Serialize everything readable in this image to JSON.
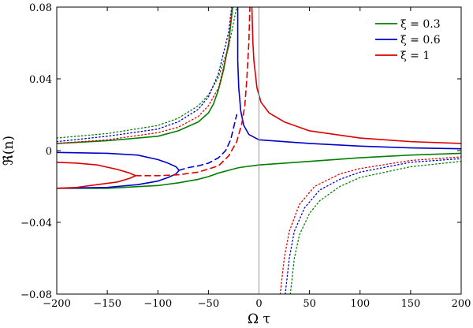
{
  "chart_data": {
    "type": "line",
    "title": "",
    "xlabel": "Ω τ",
    "ylabel": "ℜ(n)",
    "xlim": [
      -200,
      200
    ],
    "ylim": [
      -0.08,
      0.08
    ],
    "xticks": [
      -200,
      -150,
      -100,
      -50,
      0,
      50,
      100,
      150,
      200
    ],
    "yticks": [
      -0.08,
      -0.04,
      0,
      0.04,
      0.08
    ],
    "xtick_labels": [
      "−200",
      "−150",
      "−100",
      "−50",
      "0",
      "50",
      "100",
      "150",
      "200"
    ],
    "ytick_labels": [
      "−0.08",
      "−0.04",
      "0",
      "0.04",
      "0.08"
    ],
    "grid": false,
    "vertical_reference_line_x": 0,
    "legend_position": "top-right",
    "series": [
      {
        "name": "ξ = 0.3",
        "color": "#008000",
        "solid_upper": [
          [
            -200,
            0.004
          ],
          [
            -150,
            0.0055
          ],
          [
            -100,
            0.008
          ],
          [
            -80,
            0.011
          ],
          [
            -60,
            0.016
          ],
          [
            -50,
            0.021
          ],
          [
            -45,
            0.026
          ],
          [
            -40,
            0.034
          ],
          [
            -35,
            0.045
          ],
          [
            -30,
            0.06
          ],
          [
            -26,
            0.08
          ]
        ],
        "solid_lower": [
          [
            -200,
            -0.021
          ],
          [
            -150,
            -0.021
          ],
          [
            -100,
            -0.0195
          ],
          [
            -80,
            -0.018
          ],
          [
            -60,
            -0.016
          ],
          [
            -50,
            -0.0145
          ],
          [
            -40,
            -0.0125
          ],
          [
            -30,
            -0.011
          ],
          [
            -20,
            -0.0095
          ],
          [
            0,
            -0.008
          ],
          [
            50,
            -0.006
          ],
          [
            100,
            -0.004
          ],
          [
            150,
            -0.0025
          ],
          [
            200,
            -0.0015
          ]
        ],
        "dotted_upper": [
          [
            -200,
            0.007
          ],
          [
            -150,
            0.0095
          ],
          [
            -100,
            0.014
          ],
          [
            -80,
            0.018
          ],
          [
            -60,
            0.025
          ],
          [
            -50,
            0.031
          ],
          [
            -40,
            0.041
          ],
          [
            -30,
            0.058
          ],
          [
            -22,
            0.08
          ]
        ],
        "dotted_lower": [
          [
            31,
            -0.08
          ],
          [
            35,
            -0.06
          ],
          [
            40,
            -0.047
          ],
          [
            50,
            -0.035
          ],
          [
            60,
            -0.028
          ],
          [
            80,
            -0.02
          ],
          [
            100,
            -0.015
          ],
          [
            150,
            -0.009
          ],
          [
            200,
            -0.006
          ]
        ]
      },
      {
        "name": "ξ = 0.6",
        "color": "#0000cc",
        "solid_left": [
          [
            -200,
            -0.021
          ],
          [
            -150,
            -0.0205
          ],
          [
            -120,
            -0.019
          ],
          [
            -100,
            -0.017
          ],
          [
            -90,
            -0.015
          ],
          [
            -82,
            -0.013
          ],
          [
            -79,
            -0.011
          ],
          [
            -82,
            -0.009
          ],
          [
            -90,
            -0.007
          ],
          [
            -100,
            -0.005
          ],
          [
            -120,
            -0.0025
          ],
          [
            -150,
            -0.0015
          ],
          [
            -200,
            -0.001
          ]
        ],
        "dashed": [
          [
            -79,
            -0.011
          ],
          [
            -70,
            -0.0095
          ],
          [
            -60,
            -0.0085
          ],
          [
            -50,
            -0.007
          ],
          [
            -40,
            -0.004
          ],
          [
            -33,
            0
          ],
          [
            -28,
            0.006
          ],
          [
            -25,
            0.013
          ],
          [
            -22,
            0.02
          ]
        ],
        "solid_right": [
          [
            -21,
            0.08
          ],
          [
            -21,
            0.05
          ],
          [
            -20,
            0.035
          ],
          [
            -18,
            0.022
          ],
          [
            -15,
            0.014
          ],
          [
            -10,
            0.009
          ],
          [
            0,
            0.006
          ],
          [
            50,
            0.004
          ],
          [
            100,
            0.0025
          ],
          [
            150,
            0.0015
          ],
          [
            200,
            0.001
          ]
        ],
        "dotted_upper": [
          [
            -200,
            0.005
          ],
          [
            -150,
            0.008
          ],
          [
            -100,
            0.012
          ],
          [
            -80,
            0.016
          ],
          [
            -60,
            0.023
          ],
          [
            -50,
            0.03
          ],
          [
            -40,
            0.043
          ],
          [
            -30,
            0.066
          ],
          [
            -27,
            0.08
          ]
        ],
        "dotted_lower": [
          [
            26,
            -0.08
          ],
          [
            30,
            -0.06
          ],
          [
            35,
            -0.045
          ],
          [
            45,
            -0.032
          ],
          [
            60,
            -0.022
          ],
          [
            80,
            -0.016
          ],
          [
            100,
            -0.012
          ],
          [
            150,
            -0.0065
          ],
          [
            200,
            -0.0045
          ]
        ]
      },
      {
        "name": "ξ = 1",
        "color": "#dd0000",
        "solid_left": [
          [
            -200,
            -0.0065
          ],
          [
            -180,
            -0.007
          ],
          [
            -160,
            -0.008
          ],
          [
            -140,
            -0.0105
          ],
          [
            -128,
            -0.0125
          ],
          [
            -122,
            -0.014
          ],
          [
            -128,
            -0.0155
          ],
          [
            -140,
            -0.0175
          ],
          [
            -160,
            -0.019
          ],
          [
            -180,
            -0.0205
          ],
          [
            -200,
            -0.021
          ]
        ],
        "dashed": [
          [
            -122,
            -0.014
          ],
          [
            -100,
            -0.014
          ],
          [
            -80,
            -0.0135
          ],
          [
            -60,
            -0.012
          ],
          [
            -40,
            -0.0085
          ],
          [
            -30,
            -0.003
          ],
          [
            -22,
            0.005
          ],
          [
            -17,
            0.015
          ],
          [
            -14,
            0.025
          ],
          [
            -12,
            0.04
          ],
          [
            -10,
            0.06
          ],
          [
            -9,
            0.08
          ]
        ],
        "solid_right": [
          [
            -7,
            0.08
          ],
          [
            -6,
            0.06
          ],
          [
            -5,
            0.05
          ],
          [
            -2,
            0.035
          ],
          [
            2,
            0.027
          ],
          [
            10,
            0.021
          ],
          [
            25,
            0.016
          ],
          [
            50,
            0.011
          ],
          [
            100,
            0.007
          ],
          [
            150,
            0.005
          ],
          [
            200,
            0.004
          ]
        ],
        "dotted_upper": [
          [
            -200,
            0.004
          ],
          [
            -150,
            0.006
          ],
          [
            -100,
            0.01
          ],
          [
            -80,
            0.013
          ],
          [
            -60,
            0.019
          ],
          [
            -50,
            0.025
          ],
          [
            -40,
            0.035
          ],
          [
            -30,
            0.058
          ],
          [
            -27,
            0.08
          ]
        ],
        "dotted_lower": [
          [
            21,
            -0.08
          ],
          [
            25,
            -0.06
          ],
          [
            30,
            -0.045
          ],
          [
            40,
            -0.03
          ],
          [
            55,
            -0.02
          ],
          [
            80,
            -0.013
          ],
          [
            100,
            -0.01
          ],
          [
            150,
            -0.0055
          ],
          [
            200,
            -0.0035
          ]
        ]
      }
    ]
  }
}
